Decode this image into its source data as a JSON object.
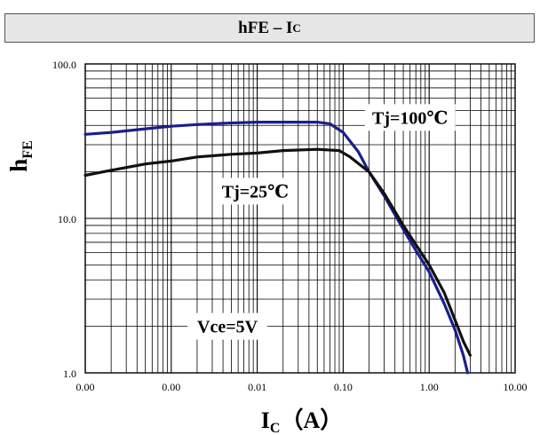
{
  "chart_data": {
    "type": "line",
    "title_main": "hFE – I",
    "title_sub": "C",
    "ylabel_main": "h",
    "ylabel_sub": "FE",
    "xlabel_main": "I",
    "xlabel_sub": "C",
    "xlabel_unit": "（A）",
    "xscale": "log",
    "yscale": "log",
    "xlim": [
      0.0001,
      10
    ],
    "ylim": [
      1,
      100
    ],
    "grid": true,
    "x_ticks": [
      {
        "value": 0.0001,
        "label": "0.00"
      },
      {
        "value": 0.001,
        "label": "0.00"
      },
      {
        "value": 0.01,
        "label": "0.01"
      },
      {
        "value": 0.1,
        "label": "0.10"
      },
      {
        "value": 1,
        "label": "1.00"
      },
      {
        "value": 10,
        "label": "10.00"
      }
    ],
    "y_ticks": [
      {
        "value": 1,
        "label": "1.0"
      },
      {
        "value": 10,
        "label": "10.0"
      },
      {
        "value": 100,
        "label": "100.0"
      }
    ],
    "series": [
      {
        "name": "Tj=100℃",
        "color": "#1a1f8c",
        "points": [
          [
            0.0001,
            35
          ],
          [
            0.0002,
            36
          ],
          [
            0.0005,
            38
          ],
          [
            0.001,
            39.5
          ],
          [
            0.002,
            40.5
          ],
          [
            0.005,
            41.5
          ],
          [
            0.01,
            42
          ],
          [
            0.02,
            42
          ],
          [
            0.05,
            42
          ],
          [
            0.07,
            41
          ],
          [
            0.1,
            36
          ],
          [
            0.15,
            27
          ],
          [
            0.2,
            20
          ],
          [
            0.3,
            14
          ],
          [
            0.5,
            8.5
          ],
          [
            0.7,
            6.2
          ],
          [
            1,
            4.5
          ],
          [
            1.5,
            2.8
          ],
          [
            2,
            1.9
          ],
          [
            2.5,
            1.3
          ],
          [
            2.8,
            1.0
          ]
        ]
      },
      {
        "name": "Tj=25℃",
        "color": "#111111",
        "points": [
          [
            0.0001,
            19
          ],
          [
            0.0002,
            20.5
          ],
          [
            0.0005,
            22.5
          ],
          [
            0.001,
            23.5
          ],
          [
            0.002,
            25
          ],
          [
            0.005,
            26
          ],
          [
            0.01,
            26.5
          ],
          [
            0.02,
            27.5
          ],
          [
            0.05,
            28
          ],
          [
            0.09,
            27.5
          ],
          [
            0.12,
            25
          ],
          [
            0.2,
            20
          ],
          [
            0.3,
            14.5
          ],
          [
            0.5,
            9
          ],
          [
            1,
            5
          ],
          [
            1.5,
            3.3
          ],
          [
            2,
            2.2
          ],
          [
            2.5,
            1.6
          ],
          [
            3,
            1.3
          ]
        ]
      }
    ],
    "annotations": [
      {
        "text": "Tj=100℃",
        "x": 0.6,
        "y": 45
      },
      {
        "text": "Tj=25℃",
        "x": 0.0095,
        "y": 15
      },
      {
        "text": "Vce=5V",
        "x": 0.0045,
        "y": 2.0
      }
    ]
  }
}
